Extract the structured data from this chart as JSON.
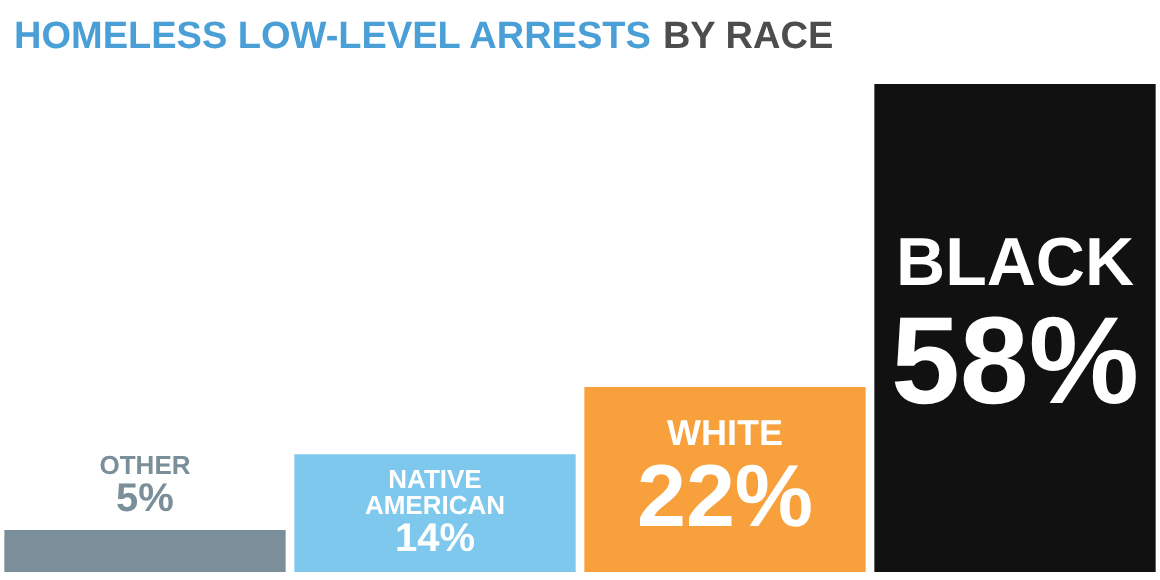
{
  "chart_data": {
    "type": "bar",
    "title": "HOMELESS LOW-LEVEL ARRESTS BY RACE",
    "categories": [
      "OTHER",
      "NATIVE AMERICAN",
      "WHITE",
      "BLACK"
    ],
    "values": [
      5,
      14,
      22,
      58
    ],
    "value_labels": [
      "5%",
      "14%",
      "22%",
      "58%"
    ],
    "colors": [
      "#7a8f99",
      "#7dc8ec",
      "#f7a03c",
      "#111111"
    ],
    "tick_labels": false
  }
}
